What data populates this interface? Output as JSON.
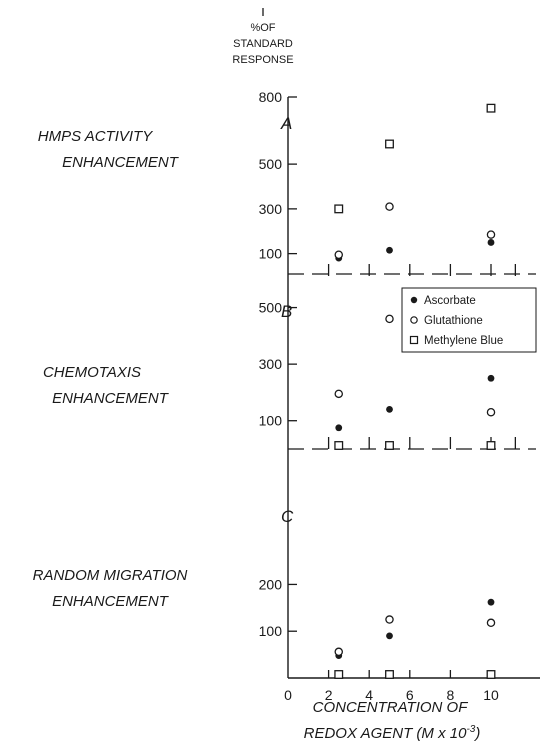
{
  "header": {
    "line1": "%OF",
    "line2": "STANDARD",
    "line3": "RESPONSE"
  },
  "xaxis": {
    "label_line1": "CONCENTRATION OF",
    "label_line2": "REDOX AGENT (M x 10",
    "label_exp": "-3",
    "label_close": ")"
  },
  "legend": {
    "items": [
      {
        "label": "Ascorbate",
        "marker": "filled-circle"
      },
      {
        "label": "Glutathione",
        "marker": "open-circle"
      },
      {
        "label": "Methylene Blue",
        "marker": "open-square"
      }
    ]
  },
  "chart_data": [
    {
      "type": "scatter",
      "panel_letter": "A",
      "row_label_1": "HMPS ACTIVITY",
      "row_label_2": "ENHANCEMENT",
      "x_ticks": [],
      "y_ticks": [
        100,
        300,
        500,
        800
      ],
      "ylim": [
        0,
        800
      ],
      "series": [
        {
          "name": "Ascorbate",
          "x": [
            2.5,
            5,
            10
          ],
          "y": [
            80,
            115,
            150
          ]
        },
        {
          "name": "Glutathione",
          "x": [
            2.5,
            5,
            10
          ],
          "y": [
            95,
            310,
            185
          ]
        },
        {
          "name": "Methylene Blue",
          "x": [
            2.5,
            5,
            10
          ],
          "y": [
            300,
            590,
            750
          ]
        }
      ]
    },
    {
      "type": "scatter",
      "panel_letter": "B",
      "row_label_1": "CHEMOTAXIS",
      "row_label_2": "ENHANCEMENT",
      "x_ticks": [],
      "y_ticks": [
        100,
        300,
        500
      ],
      "ylim": [
        0,
        700
      ],
      "series": [
        {
          "name": "Ascorbate",
          "x": [
            2.5,
            5,
            10
          ],
          "y": [
            75,
            140,
            250
          ]
        },
        {
          "name": "Glutathione",
          "x": [
            2.5,
            5,
            10
          ],
          "y": [
            195,
            460,
            130
          ]
        },
        {
          "name": "Methylene Blue",
          "x": [
            2.5,
            5,
            10
          ],
          "y": [
            0,
            10,
            0
          ]
        }
      ]
    },
    {
      "type": "scatter",
      "panel_letter": "C",
      "row_label_1": "RANDOM MIGRATION",
      "row_label_2": "ENHANCEMENT",
      "x_ticks": [
        0,
        2,
        4,
        6,
        8,
        10
      ],
      "y_ticks": [
        100,
        200
      ],
      "ylim": [
        0,
        280
      ],
      "series": [
        {
          "name": "Ascorbate",
          "x": [
            2.5,
            5,
            10
          ],
          "y": [
            48,
            90,
            162
          ]
        },
        {
          "name": "Glutathione",
          "x": [
            2.5,
            5,
            10
          ],
          "y": [
            56,
            125,
            118
          ]
        },
        {
          "name": "Methylene Blue",
          "x": [
            2.5,
            5,
            10
          ],
          "y": [
            0,
            0,
            0
          ]
        }
      ]
    }
  ]
}
